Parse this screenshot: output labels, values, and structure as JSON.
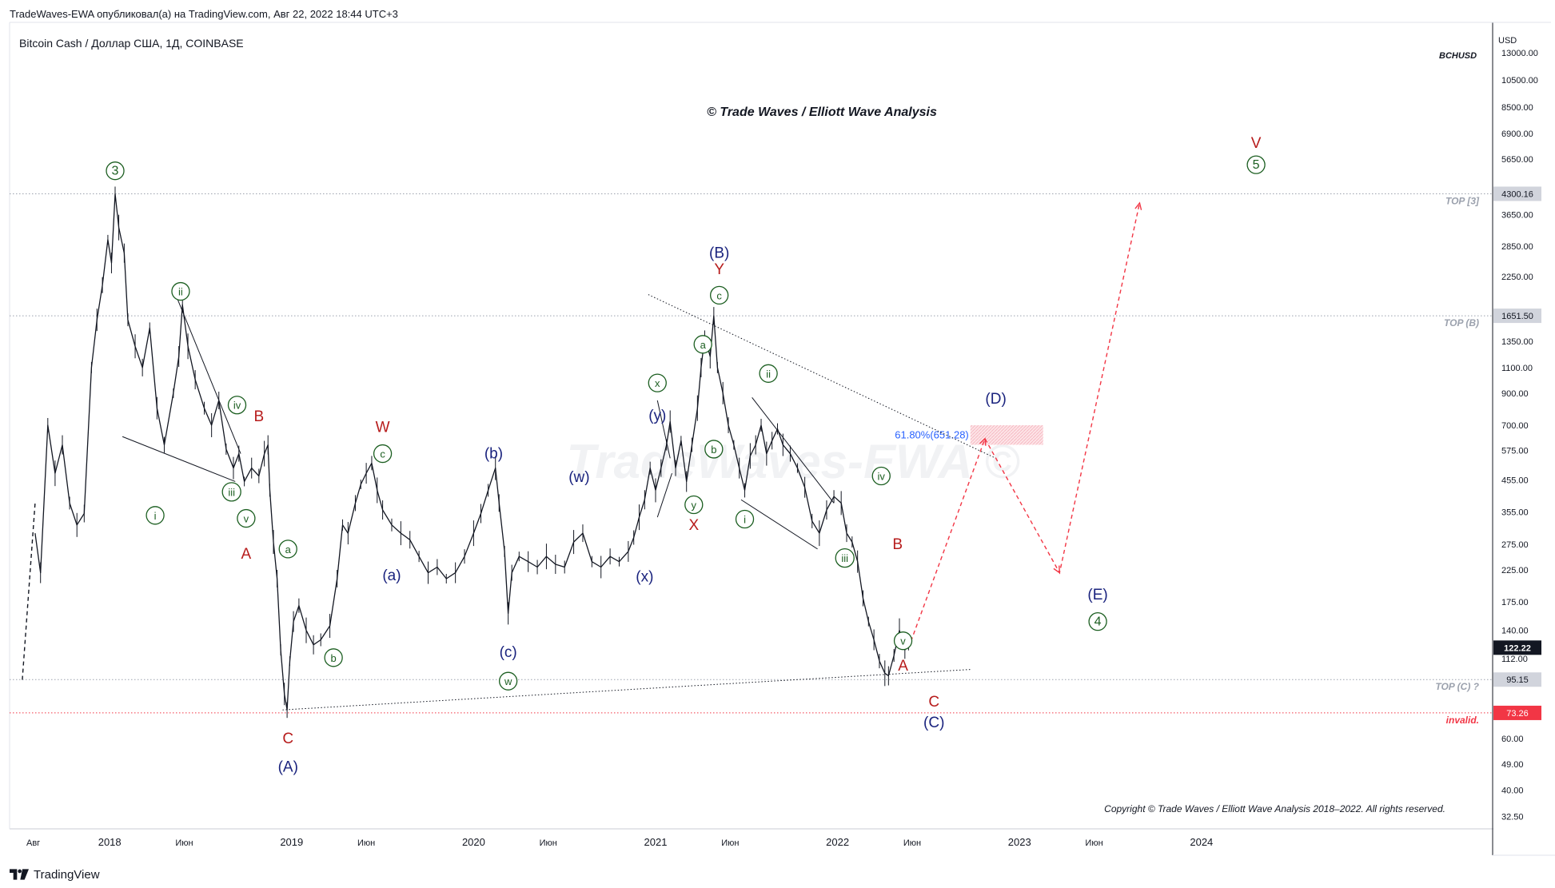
{
  "header": {
    "publisher_line": "TradeWaves-EWA опубликовал(а) на TradingView.com, Авг 22, 2022 18:44 UTC+3"
  },
  "footer": {
    "brand": "TradingView"
  },
  "chart_data": {
    "type": "line",
    "symbol_line": "Bitcoin Cash / Доллар США, 1Д, COINBASE",
    "title": "© Trade Waves / Elliott Wave Analysis",
    "watermark": "TradeWaves-EWA ©",
    "ticker_tag": "BCHUSD",
    "currency": "USD",
    "copyright": "Copyright © Trade Waves / Elliott Wave Analysis 2018–2022. All rights reserved.",
    "scale": "log",
    "xlim": [
      2017.45,
      2025.6
    ],
    "ylim": [
      29.5,
      16500
    ],
    "y_ticks": [
      13000,
      10500,
      8500,
      6900,
      5650,
      3650,
      2850,
      2250,
      1350,
      1100,
      900,
      700,
      575,
      455,
      355,
      275,
      225,
      175,
      140,
      112,
      60,
      49,
      40,
      32.5
    ],
    "y_tick_labels": [
      "13000.00",
      "10500.00",
      "8500.00",
      "6900.00",
      "5650.00",
      "3650.00",
      "2850.00",
      "2250.00",
      "1350.00",
      "1100.00",
      "900.00",
      "700.00",
      "575.00",
      "455.00",
      "355.00",
      "275.00",
      "225.00",
      "175.00",
      "140.00",
      "112.00",
      "60.00",
      "49.00",
      "40.00",
      "32.50"
    ],
    "x_ticks": [
      {
        "t": 2017.58,
        "label": "Авг"
      },
      {
        "t": 2018.0,
        "label": "2018"
      },
      {
        "t": 2018.41,
        "label": "Июн"
      },
      {
        "t": 2019.0,
        "label": "2019"
      },
      {
        "t": 2019.41,
        "label": "Июн"
      },
      {
        "t": 2020.0,
        "label": "2020"
      },
      {
        "t": 2020.41,
        "label": "Июн"
      },
      {
        "t": 2021.0,
        "label": "2021"
      },
      {
        "t": 2021.41,
        "label": "Июн"
      },
      {
        "t": 2022.0,
        "label": "2022"
      },
      {
        "t": 2022.41,
        "label": "Июн"
      },
      {
        "t": 2023.0,
        "label": "2023"
      },
      {
        "t": 2023.41,
        "label": "Июн"
      },
      {
        "t": 2024.0,
        "label": "2024"
      }
    ],
    "price_path": [
      [
        2017.59,
        300
      ],
      [
        2017.62,
        220
      ],
      [
        2017.66,
        700
      ],
      [
        2017.7,
        480
      ],
      [
        2017.74,
        600
      ],
      [
        2017.78,
        380
      ],
      [
        2017.82,
        320
      ],
      [
        2017.86,
        350
      ],
      [
        2017.9,
        1100
      ],
      [
        2017.93,
        1600
      ],
      [
        2017.96,
        2100
      ],
      [
        2017.99,
        3000
      ],
      [
        2018.01,
        2500
      ],
      [
        2018.03,
        4300
      ],
      [
        2018.05,
        3300
      ],
      [
        2018.08,
        2700
      ],
      [
        2018.1,
        1600
      ],
      [
        2018.14,
        1300
      ],
      [
        2018.18,
        1100
      ],
      [
        2018.22,
        1500
      ],
      [
        2018.26,
        800
      ],
      [
        2018.3,
        600
      ],
      [
        2018.35,
        900
      ],
      [
        2018.38,
        1200
      ],
      [
        2018.4,
        1800
      ],
      [
        2018.43,
        1300
      ],
      [
        2018.47,
        1000
      ],
      [
        2018.52,
        800
      ],
      [
        2018.56,
        700
      ],
      [
        2018.6,
        850
      ],
      [
        2018.64,
        580
      ],
      [
        2018.68,
        500
      ],
      [
        2018.71,
        560
      ],
      [
        2018.74,
        450
      ],
      [
        2018.78,
        500
      ],
      [
        2018.82,
        470
      ],
      [
        2018.85,
        560
      ],
      [
        2018.87,
        600
      ],
      [
        2018.88,
        420
      ],
      [
        2018.9,
        280
      ],
      [
        2018.92,
        210
      ],
      [
        2018.94,
        120
      ],
      [
        2018.96,
        85
      ],
      [
        2018.975,
        75
      ],
      [
        2018.99,
        110
      ],
      [
        2019.01,
        150
      ],
      [
        2019.04,
        170
      ],
      [
        2019.08,
        140
      ],
      [
        2019.12,
        125
      ],
      [
        2019.16,
        130
      ],
      [
        2019.21,
        145
      ],
      [
        2019.25,
        210
      ],
      [
        2019.28,
        320
      ],
      [
        2019.31,
        300
      ],
      [
        2019.35,
        380
      ],
      [
        2019.38,
        440
      ],
      [
        2019.41,
        480
      ],
      [
        2019.44,
        520
      ],
      [
        2019.47,
        420
      ],
      [
        2019.5,
        360
      ],
      [
        2019.55,
        320
      ],
      [
        2019.6,
        300
      ],
      [
        2019.65,
        285
      ],
      [
        2019.7,
        250
      ],
      [
        2019.75,
        220
      ],
      [
        2019.8,
        230
      ],
      [
        2019.85,
        210
      ],
      [
        2019.9,
        220
      ],
      [
        2019.95,
        250
      ],
      [
        2020.0,
        300
      ],
      [
        2020.04,
        350
      ],
      [
        2020.08,
        420
      ],
      [
        2020.12,
        500
      ],
      [
        2020.14,
        380
      ],
      [
        2020.17,
        260
      ],
      [
        2020.19,
        160
      ],
      [
        2020.21,
        220
      ],
      [
        2020.25,
        250
      ],
      [
        2020.3,
        240
      ],
      [
        2020.35,
        230
      ],
      [
        2020.4,
        250
      ],
      [
        2020.45,
        235
      ],
      [
        2020.5,
        230
      ],
      [
        2020.55,
        280
      ],
      [
        2020.6,
        300
      ],
      [
        2020.65,
        240
      ],
      [
        2020.7,
        230
      ],
      [
        2020.75,
        250
      ],
      [
        2020.8,
        240
      ],
      [
        2020.85,
        260
      ],
      [
        2020.88,
        290
      ],
      [
        2020.91,
        340
      ],
      [
        2020.94,
        390
      ],
      [
        2020.97,
        500
      ],
      [
        2021.0,
        420
      ],
      [
        2021.03,
        500
      ],
      [
        2021.06,
        600
      ],
      [
        2021.08,
        720
      ],
      [
        2021.11,
        500
      ],
      [
        2021.14,
        620
      ],
      [
        2021.17,
        450
      ],
      [
        2021.2,
        600
      ],
      [
        2021.23,
        800
      ],
      [
        2021.25,
        1100
      ],
      [
        2021.27,
        1400
      ],
      [
        2021.3,
        1200
      ],
      [
        2021.32,
        1651
      ],
      [
        2021.34,
        1100
      ],
      [
        2021.37,
        900
      ],
      [
        2021.4,
        700
      ],
      [
        2021.43,
        600
      ],
      [
        2021.46,
        500
      ],
      [
        2021.49,
        420
      ],
      [
        2021.52,
        550
      ],
      [
        2021.55,
        600
      ],
      [
        2021.58,
        700
      ],
      [
        2021.61,
        560
      ],
      [
        2021.64,
        620
      ],
      [
        2021.67,
        680
      ],
      [
        2021.7,
        600
      ],
      [
        2021.74,
        560
      ],
      [
        2021.78,
        500
      ],
      [
        2021.82,
        430
      ],
      [
        2021.86,
        330
      ],
      [
        2021.9,
        300
      ],
      [
        2021.94,
        360
      ],
      [
        2021.98,
        400
      ],
      [
        2022.02,
        380
      ],
      [
        2022.05,
        300
      ],
      [
        2022.08,
        280
      ],
      [
        2022.11,
        240
      ],
      [
        2022.14,
        180
      ],
      [
        2022.17,
        150
      ],
      [
        2022.2,
        130
      ],
      [
        2022.23,
        110
      ],
      [
        2022.26,
        100
      ],
      [
        2022.28,
        98
      ],
      [
        2022.31,
        115
      ],
      [
        2022.34,
        140
      ],
      [
        2022.37,
        120
      ],
      [
        2022.39,
        125
      ]
    ],
    "series": [
      {
        "name": "forecast-path",
        "style": "dashed",
        "color": "#f23645",
        "points": [
          [
            2022.39,
            122
          ],
          [
            2022.81,
            630
          ],
          [
            2023.22,
            220
          ],
          [
            2023.66,
            4000
          ]
        ]
      },
      {
        "name": "lead-in",
        "style": "dashed",
        "color": "#131722",
        "points": [
          [
            2017.52,
            95
          ],
          [
            2017.59,
            380
          ]
        ]
      }
    ],
    "trendlines": [
      {
        "name": "upper-triangle-line",
        "style": "dotted",
        "points": [
          [
            2020.96,
            1950
          ],
          [
            2022.87,
            540
          ]
        ]
      },
      {
        "name": "lower-triangle-line",
        "style": "dotted",
        "points": [
          [
            2018.95,
            75
          ],
          [
            2022.73,
            103
          ]
        ]
      },
      {
        "name": "wedge-1-upper",
        "style": "solid",
        "points": [
          [
            2018.37,
            1900
          ],
          [
            2018.72,
            560
          ]
        ]
      },
      {
        "name": "wedge-1-lower",
        "style": "solid",
        "points": [
          [
            2018.07,
            640
          ],
          [
            2018.69,
            450
          ]
        ]
      },
      {
        "name": "wedge-2-upper",
        "style": "solid",
        "points": [
          [
            2021.53,
            870
          ],
          [
            2021.98,
            380
          ]
        ]
      },
      {
        "name": "wedge-2-lower",
        "style": "solid",
        "points": [
          [
            2021.47,
            390
          ],
          [
            2021.89,
            265
          ]
        ]
      },
      {
        "name": "wedge-3-upper",
        "style": "solid",
        "points": [
          [
            2021.01,
            850
          ],
          [
            2021.08,
            540
          ]
        ]
      },
      {
        "name": "wedge-3-lower",
        "style": "solid",
        "points": [
          [
            2021.01,
            340
          ],
          [
            2021.09,
            480
          ]
        ]
      }
    ],
    "horizontal_levels": [
      {
        "name": "top-3-level",
        "value": 4300.16,
        "price_label": "4300.16",
        "text": "TOP [3]",
        "color": "#9ba1ad",
        "style": "dotted"
      },
      {
        "name": "top-b-level",
        "value": 1651.5,
        "price_label": "1651.50",
        "text": "TOP (B)",
        "color": "#9ba1ad",
        "style": "dotted"
      },
      {
        "name": "top-c-level",
        "value": 95.15,
        "price_label": "95.15",
        "text": "TOP (C) ?",
        "color": "#9ba1ad",
        "style": "dotted"
      },
      {
        "name": "invalid-level",
        "value": 73.26,
        "price_label": "73.26",
        "text": "invalid.",
        "color": "#f23645",
        "style": "dotted"
      }
    ],
    "last_price": {
      "value": 122.22,
      "label": "122.22"
    },
    "fib_zone": {
      "label": "61.80%(651.28)",
      "t0": 2022.73,
      "t1": 2023.13,
      "y_low": 600,
      "y_high": 700
    },
    "wave_labels": [
      {
        "text": "3",
        "circled": true,
        "color": "#1b5e20",
        "t": 2018.03,
        "y": 5150
      },
      {
        "text": "ii",
        "circled": true,
        "color": "#1b5e20",
        "t": 2018.39,
        "y": 2000
      },
      {
        "text": "iv",
        "circled": true,
        "color": "#1b5e20",
        "t": 2018.7,
        "y": 820
      },
      {
        "text": "B",
        "circled": false,
        "color": "#b71c1c",
        "t": 2018.82,
        "y": 750
      },
      {
        "text": "i",
        "circled": true,
        "color": "#1b5e20",
        "t": 2018.25,
        "y": 345
      },
      {
        "text": "iii",
        "circled": true,
        "color": "#1b5e20",
        "t": 2018.67,
        "y": 415
      },
      {
        "text": "v",
        "circled": true,
        "color": "#1b5e20",
        "t": 2018.75,
        "y": 337
      },
      {
        "text": "A",
        "circled": false,
        "color": "#b71c1c",
        "t": 2018.75,
        "y": 255
      },
      {
        "text": "a",
        "circled": true,
        "color": "#1b5e20",
        "t": 2018.98,
        "y": 265
      },
      {
        "text": "b",
        "circled": true,
        "color": "#1b5e20",
        "t": 2019.23,
        "y": 113
      },
      {
        "text": "C",
        "circled": false,
        "color": "#b71c1c",
        "t": 2018.98,
        "y": 60
      },
      {
        "text": "(A)",
        "circled": false,
        "color": "#1a237e",
        "t": 2018.98,
        "y": 48
      },
      {
        "text": "W",
        "circled": false,
        "color": "#b71c1c",
        "t": 2019.5,
        "y": 690
      },
      {
        "text": "c",
        "circled": true,
        "color": "#1b5e20",
        "t": 2019.5,
        "y": 560
      },
      {
        "text": "(a)",
        "circled": false,
        "color": "#1a237e",
        "t": 2019.55,
        "y": 215
      },
      {
        "text": "(b)",
        "circled": false,
        "color": "#1a237e",
        "t": 2020.11,
        "y": 560
      },
      {
        "text": "(w)",
        "circled": false,
        "color": "#1a237e",
        "t": 2020.58,
        "y": 465
      },
      {
        "text": "(c)",
        "circled": false,
        "color": "#1a237e",
        "t": 2020.19,
        "y": 118
      },
      {
        "text": "w",
        "circled": true,
        "color": "#1b5e20",
        "t": 2020.19,
        "y": 94
      },
      {
        "text": "(x)",
        "circled": false,
        "color": "#1a237e",
        "t": 2020.94,
        "y": 213
      },
      {
        "text": "x",
        "circled": true,
        "color": "#1b5e20",
        "t": 2021.01,
        "y": 975
      },
      {
        "text": "(y)",
        "circled": false,
        "color": "#1a237e",
        "t": 2021.01,
        "y": 755
      },
      {
        "text": "y",
        "circled": true,
        "color": "#1b5e20",
        "t": 2021.21,
        "y": 375
      },
      {
        "text": "X",
        "circled": false,
        "color": "#b71c1c",
        "t": 2021.21,
        "y": 320
      },
      {
        "text": "b",
        "circled": true,
        "color": "#1b5e20",
        "t": 2021.32,
        "y": 580
      },
      {
        "text": "a",
        "circled": true,
        "color": "#1b5e20",
        "t": 2021.26,
        "y": 1320
      },
      {
        "text": "c",
        "circled": true,
        "color": "#1b5e20",
        "t": 2021.35,
        "y": 1940
      },
      {
        "text": "Y",
        "circled": false,
        "color": "#b71c1c",
        "t": 2021.35,
        "y": 2380
      },
      {
        "text": "(B)",
        "circled": false,
        "color": "#1a237e",
        "t": 2021.35,
        "y": 2700
      },
      {
        "text": "ii",
        "circled": true,
        "color": "#1b5e20",
        "t": 2021.62,
        "y": 1050
      },
      {
        "text": "i",
        "circled": true,
        "color": "#1b5e20",
        "t": 2021.49,
        "y": 335
      },
      {
        "text": "iii",
        "circled": true,
        "color": "#1b5e20",
        "t": 2022.04,
        "y": 247
      },
      {
        "text": "iv",
        "circled": true,
        "color": "#1b5e20",
        "t": 2022.24,
        "y": 470
      },
      {
        "text": "B",
        "circled": false,
        "color": "#b71c1c",
        "t": 2022.33,
        "y": 275
      },
      {
        "text": "v",
        "circled": true,
        "color": "#1b5e20",
        "t": 2022.36,
        "y": 129
      },
      {
        "text": "A",
        "circled": false,
        "color": "#b71c1c",
        "t": 2022.36,
        "y": 106
      },
      {
        "text": "C",
        "circled": false,
        "color": "#b71c1c",
        "t": 2022.53,
        "y": 80
      },
      {
        "text": "(C)",
        "circled": false,
        "color": "#1a237e",
        "t": 2022.53,
        "y": 68
      },
      {
        "text": "(D)",
        "circled": false,
        "color": "#1a237e",
        "t": 2022.87,
        "y": 860
      },
      {
        "text": "(E)",
        "circled": false,
        "color": "#1a237e",
        "t": 2023.43,
        "y": 185
      },
      {
        "text": "4",
        "circled": true,
        "color": "#1b5e20",
        "t": 2023.43,
        "y": 150
      },
      {
        "text": "V",
        "circled": false,
        "color": "#b71c1c",
        "t": 2024.3,
        "y": 6400
      },
      {
        "text": "5",
        "circled": true,
        "color": "#1b5e20",
        "t": 2024.3,
        "y": 5400
      }
    ]
  }
}
